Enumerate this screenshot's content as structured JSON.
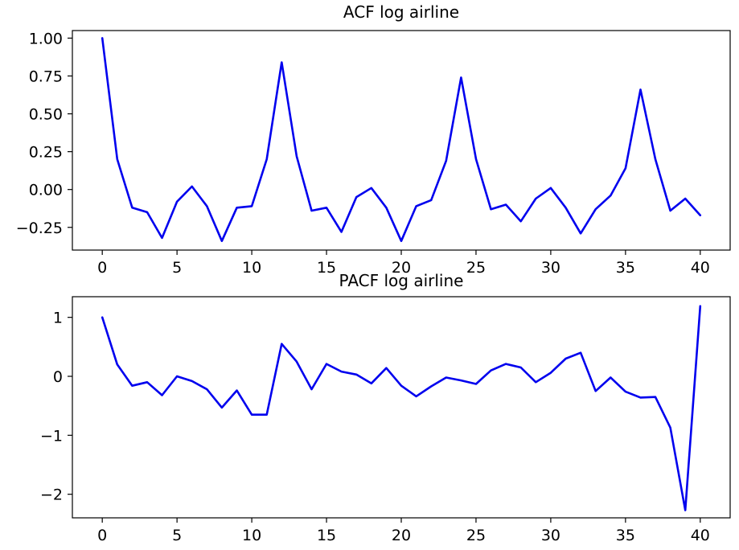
{
  "chart_data": [
    {
      "type": "line",
      "title": "ACF log airline",
      "xlabel": "",
      "ylabel": "",
      "xlim": [
        -2,
        42
      ],
      "ylim": [
        -0.4,
        1.05
      ],
      "xticks": [
        0,
        5,
        10,
        15,
        20,
        25,
        30,
        35,
        40
      ],
      "xtick_labels": [
        "0",
        "5",
        "10",
        "15",
        "20",
        "25",
        "30",
        "35",
        "40"
      ],
      "yticks": [
        1.0,
        0.75,
        0.5,
        0.25,
        0.0,
        -0.25
      ],
      "ytick_labels": [
        "1.00",
        "0.75",
        "0.50",
        "0.25",
        "0.00",
        "−0.25"
      ],
      "grid": false,
      "series": [
        {
          "color": "#0000ee",
          "x": [
            0,
            1,
            2,
            3,
            4,
            5,
            6,
            7,
            8,
            9,
            10,
            11,
            12,
            13,
            14,
            15,
            16,
            17,
            18,
            19,
            20,
            21,
            22,
            23,
            24,
            25,
            26,
            27,
            28,
            29,
            30,
            31,
            32,
            33,
            34,
            35,
            36,
            37,
            38,
            39,
            40
          ],
          "y": [
            1.0,
            0.2,
            -0.12,
            -0.15,
            -0.32,
            -0.08,
            0.02,
            -0.11,
            -0.34,
            -0.12,
            -0.11,
            0.2,
            0.84,
            0.22,
            -0.14,
            -0.12,
            -0.28,
            -0.05,
            0.01,
            -0.12,
            -0.34,
            -0.11,
            -0.07,
            0.19,
            0.74,
            0.2,
            -0.13,
            -0.1,
            -0.21,
            -0.06,
            0.01,
            -0.12,
            -0.29,
            -0.13,
            -0.04,
            0.14,
            0.66,
            0.2,
            -0.14,
            -0.06,
            -0.17
          ]
        }
      ]
    },
    {
      "type": "line",
      "title": "PACF log airline",
      "xlabel": "",
      "ylabel": "",
      "xlim": [
        -2,
        42
      ],
      "ylim": [
        -2.4,
        1.35
      ],
      "xticks": [
        0,
        5,
        10,
        15,
        20,
        25,
        30,
        35,
        40
      ],
      "xtick_labels": [
        "0",
        "5",
        "10",
        "15",
        "20",
        "25",
        "30",
        "35",
        "40"
      ],
      "yticks": [
        1,
        0,
        -1,
        -2
      ],
      "ytick_labels": [
        "1",
        "0",
        "−1",
        "−2"
      ],
      "grid": false,
      "series": [
        {
          "color": "#0000ee",
          "x": [
            0,
            1,
            2,
            3,
            4,
            5,
            6,
            7,
            8,
            9,
            10,
            11,
            12,
            13,
            14,
            15,
            16,
            17,
            18,
            19,
            20,
            21,
            22,
            23,
            24,
            25,
            26,
            27,
            28,
            29,
            30,
            31,
            32,
            33,
            34,
            35,
            36,
            37,
            38,
            39,
            40
          ],
          "y": [
            1.0,
            0.2,
            -0.16,
            -0.1,
            -0.32,
            0.0,
            -0.08,
            -0.22,
            -0.53,
            -0.24,
            -0.65,
            -0.65,
            0.55,
            0.25,
            -0.22,
            0.21,
            0.08,
            0.03,
            -0.12,
            0.14,
            -0.16,
            -0.34,
            -0.17,
            -0.02,
            -0.07,
            -0.13,
            0.1,
            0.21,
            0.15,
            -0.1,
            0.06,
            0.3,
            0.4,
            -0.25,
            -0.02,
            -0.26,
            -0.36,
            -0.35,
            -0.87,
            -2.27,
            1.19
          ]
        }
      ]
    }
  ]
}
